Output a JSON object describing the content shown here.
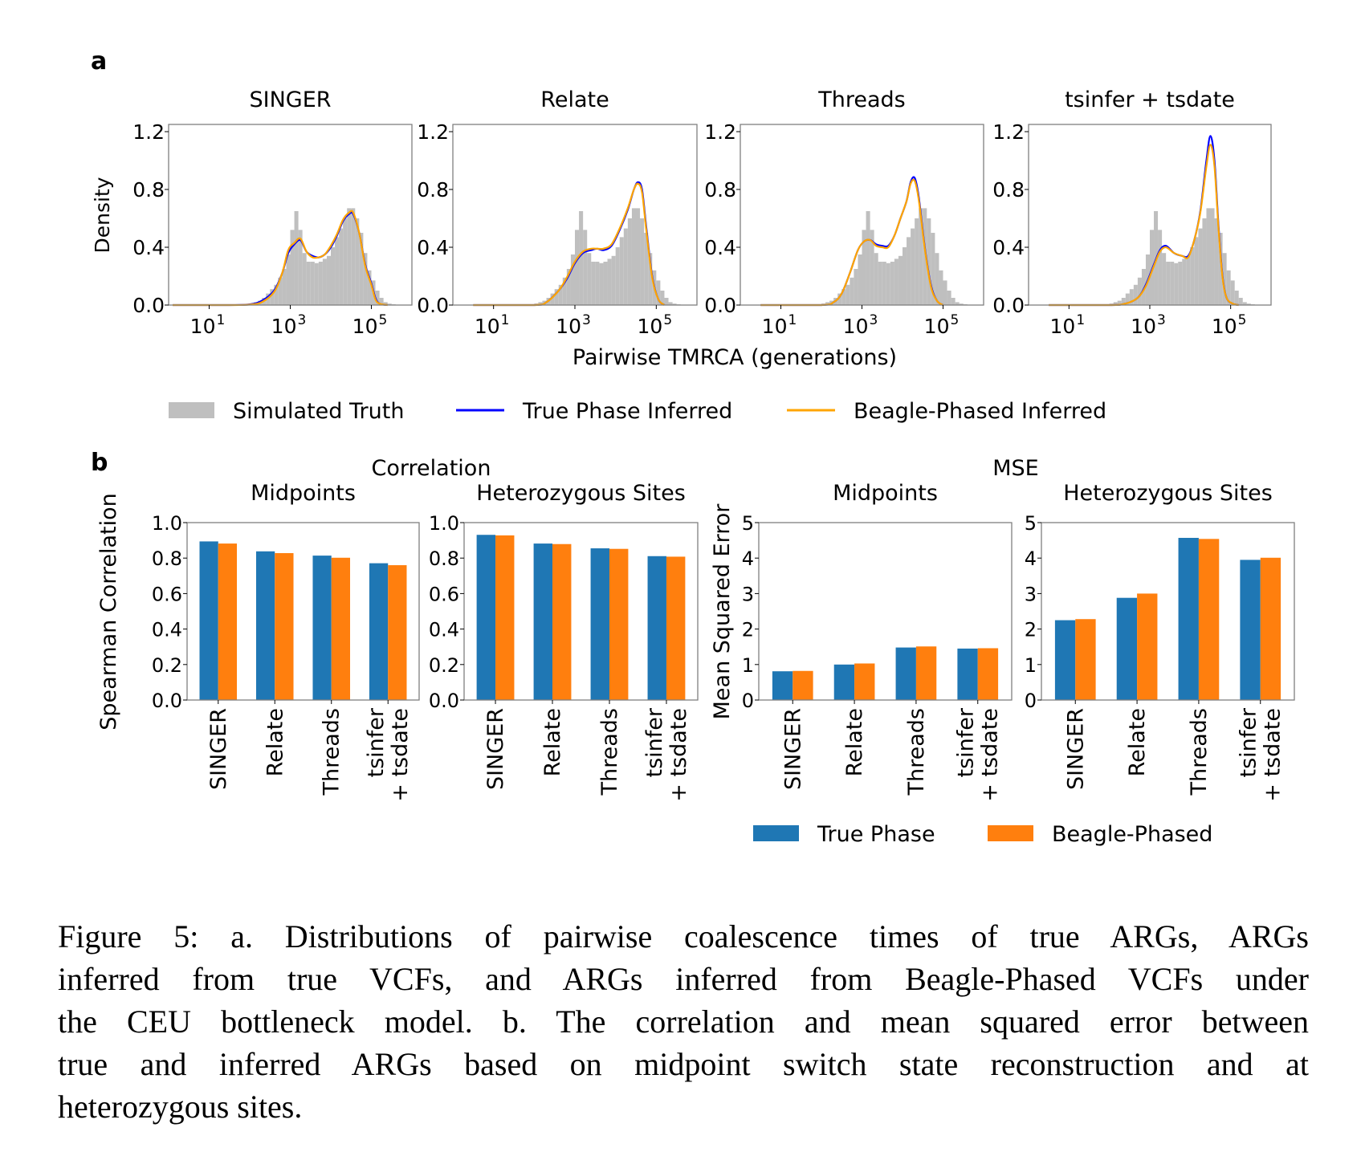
{
  "figure": {
    "panel_a_label": "a",
    "panel_b_label": "b",
    "caption_lines": [
      "Figure 5: a.  Distributions of pairwise coalescence times of true ARGs, ARGs",
      "inferred from true VCFs, and ARGs inferred from Beagle-Phased VCFs under",
      "the CEU bottleneck model. b. The correlation and mean squared error between",
      "true and inferred ARGs based on midpoint switch state reconstruction and at",
      "heterozygous sites."
    ]
  },
  "legend_a": {
    "items": [
      {
        "label": "Simulated Truth",
        "kind": "patch",
        "color": "#bfbfbf"
      },
      {
        "label": "True Phase Inferred",
        "kind": "line",
        "color": "#0000ff"
      },
      {
        "label": "Beagle-Phased Inferred",
        "kind": "line",
        "color": "#ffa500"
      }
    ]
  },
  "legend_b": {
    "items": [
      {
        "label": "True Phase",
        "color": "#1f77b4"
      },
      {
        "label": "Beagle-Phased",
        "color": "#ff7f0e"
      }
    ]
  },
  "group_titles_b": {
    "correlation": "Correlation",
    "mse": "MSE"
  },
  "chart_data": [
    {
      "type": "histogram-with-density",
      "title": "SINGER",
      "xlabel": "Pairwise TMRCA (generations)",
      "ylabel": "Density",
      "xscale": "log10",
      "xlim_log10": [
        0,
        6
      ],
      "ylim": [
        0,
        1.25
      ],
      "yticks": [
        0.0,
        0.4,
        0.8,
        1.2
      ],
      "ytick_labels": [
        "0.0",
        "0.4",
        "0.8",
        "1.2"
      ],
      "xticks_log10": [
        1,
        3,
        5
      ],
      "xtick_labels": [
        "10",
        "10",
        "10"
      ],
      "xtick_exponents": [
        "1",
        "3",
        "5"
      ],
      "truth_hist": {
        "bin_log10_start": 2.0,
        "bin_width_log10": 0.1,
        "density": [
          0.01,
          0.02,
          0.03,
          0.05,
          0.08,
          0.11,
          0.14,
          0.19,
          0.25,
          0.35,
          0.52,
          0.65,
          0.52,
          0.36,
          0.3,
          0.3,
          0.29,
          0.3,
          0.32,
          0.34,
          0.4,
          0.47,
          0.53,
          0.6,
          0.67,
          0.67,
          0.6,
          0.5,
          0.36,
          0.24,
          0.17,
          0.1,
          0.05,
          0.02,
          0.01,
          0.005
        ]
      },
      "series": [
        {
          "name": "True Phase Inferred",
          "color": "#0000ff",
          "x_log10": [
            0.1,
            1.5,
            2.0,
            2.3,
            2.6,
            2.8,
            2.95,
            3.1,
            3.25,
            3.4,
            3.55,
            3.7,
            3.85,
            4.0,
            4.15,
            4.3,
            4.45,
            4.55,
            4.7,
            4.85,
            5.0,
            5.1,
            5.2,
            5.4
          ],
          "y": [
            0.0,
            0.0,
            0.005,
            0.03,
            0.1,
            0.22,
            0.36,
            0.42,
            0.45,
            0.37,
            0.34,
            0.33,
            0.35,
            0.4,
            0.48,
            0.58,
            0.63,
            0.63,
            0.5,
            0.28,
            0.15,
            0.05,
            0.01,
            0.0
          ]
        },
        {
          "name": "Beagle-Phased Inferred",
          "color": "#ffa500",
          "x_log10": [
            0.1,
            1.5,
            2.0,
            2.3,
            2.6,
            2.8,
            2.95,
            3.1,
            3.25,
            3.4,
            3.55,
            3.7,
            3.85,
            4.0,
            4.15,
            4.3,
            4.45,
            4.55,
            4.7,
            4.85,
            5.0,
            5.1,
            5.2,
            5.4
          ],
          "y": [
            0.0,
            0.0,
            0.003,
            0.02,
            0.09,
            0.22,
            0.38,
            0.43,
            0.46,
            0.37,
            0.33,
            0.33,
            0.35,
            0.41,
            0.49,
            0.59,
            0.64,
            0.64,
            0.5,
            0.27,
            0.14,
            0.04,
            0.01,
            0.0
          ]
        }
      ]
    },
    {
      "type": "histogram-with-density",
      "title": "Relate",
      "xscale": "log10",
      "xlim_log10": [
        0,
        6
      ],
      "ylim": [
        0,
        1.25
      ],
      "yticks": [
        0.0,
        0.4,
        0.8,
        1.2
      ],
      "ytick_labels": [
        "0.0",
        "0.4",
        "0.8",
        "1.2"
      ],
      "xticks_log10": [
        1,
        3,
        5
      ],
      "xtick_labels": [
        "10",
        "10",
        "10"
      ],
      "xtick_exponents": [
        "1",
        "3",
        "5"
      ],
      "truth_hist": {
        "bin_log10_start": 2.0,
        "bin_width_log10": 0.1,
        "density": [
          0.01,
          0.02,
          0.03,
          0.05,
          0.08,
          0.11,
          0.14,
          0.19,
          0.25,
          0.35,
          0.52,
          0.65,
          0.52,
          0.36,
          0.3,
          0.3,
          0.29,
          0.3,
          0.32,
          0.34,
          0.4,
          0.47,
          0.53,
          0.6,
          0.67,
          0.67,
          0.6,
          0.5,
          0.36,
          0.24,
          0.17,
          0.1,
          0.05,
          0.02,
          0.01,
          0.005
        ]
      },
      "series": [
        {
          "name": "True Phase Inferred",
          "color": "#0000ff",
          "x_log10": [
            0.5,
            2.0,
            2.3,
            2.6,
            2.8,
            3.0,
            3.2,
            3.4,
            3.55,
            3.7,
            3.9,
            4.1,
            4.3,
            4.45,
            4.55,
            4.65,
            4.75,
            4.9,
            5.05,
            5.2
          ],
          "y": [
            0.0,
            0.0,
            0.02,
            0.1,
            0.18,
            0.29,
            0.36,
            0.38,
            0.39,
            0.38,
            0.41,
            0.52,
            0.66,
            0.8,
            0.85,
            0.8,
            0.55,
            0.2,
            0.04,
            0.0
          ]
        },
        {
          "name": "Beagle-Phased Inferred",
          "color": "#ffa500",
          "x_log10": [
            0.5,
            2.0,
            2.3,
            2.6,
            2.8,
            3.0,
            3.2,
            3.4,
            3.55,
            3.7,
            3.9,
            4.1,
            4.3,
            4.45,
            4.55,
            4.65,
            4.75,
            4.9,
            5.05,
            5.2
          ],
          "y": [
            0.0,
            0.0,
            0.02,
            0.1,
            0.19,
            0.3,
            0.37,
            0.39,
            0.39,
            0.39,
            0.42,
            0.53,
            0.67,
            0.8,
            0.84,
            0.78,
            0.53,
            0.19,
            0.04,
            0.0
          ]
        }
      ]
    },
    {
      "type": "histogram-with-density",
      "title": "Threads",
      "xscale": "log10",
      "xlim_log10": [
        0,
        6
      ],
      "ylim": [
        0,
        1.25
      ],
      "yticks": [
        0.0,
        0.4,
        0.8,
        1.2
      ],
      "ytick_labels": [
        "0.0",
        "0.4",
        "0.8",
        "1.2"
      ],
      "xticks_log10": [
        1,
        3,
        5
      ],
      "xtick_labels": [
        "10",
        "10",
        "10"
      ],
      "xtick_exponents": [
        "1",
        "3",
        "5"
      ],
      "truth_hist": {
        "bin_log10_start": 2.0,
        "bin_width_log10": 0.1,
        "density": [
          0.01,
          0.02,
          0.03,
          0.05,
          0.08,
          0.11,
          0.14,
          0.19,
          0.25,
          0.35,
          0.52,
          0.65,
          0.52,
          0.36,
          0.3,
          0.3,
          0.29,
          0.3,
          0.32,
          0.34,
          0.4,
          0.47,
          0.53,
          0.6,
          0.67,
          0.67,
          0.6,
          0.5,
          0.36,
          0.24,
          0.17,
          0.1,
          0.05,
          0.02,
          0.01,
          0.005
        ]
      },
      "series": [
        {
          "name": "True Phase Inferred",
          "color": "#0000ff",
          "x_log10": [
            0.5,
            2.0,
            2.3,
            2.5,
            2.7,
            2.9,
            3.05,
            3.2,
            3.35,
            3.5,
            3.65,
            3.8,
            3.95,
            4.1,
            4.2,
            4.3,
            4.4,
            4.55,
            4.7,
            4.85,
            5.0
          ],
          "y": [
            0.0,
            0.0,
            0.02,
            0.08,
            0.22,
            0.38,
            0.44,
            0.45,
            0.42,
            0.41,
            0.41,
            0.48,
            0.6,
            0.72,
            0.85,
            0.88,
            0.75,
            0.4,
            0.14,
            0.03,
            0.0
          ]
        },
        {
          "name": "Beagle-Phased Inferred",
          "color": "#ffa500",
          "x_log10": [
            0.5,
            2.0,
            2.3,
            2.5,
            2.7,
            2.9,
            3.05,
            3.2,
            3.35,
            3.5,
            3.65,
            3.8,
            3.95,
            4.1,
            4.2,
            4.3,
            4.4,
            4.55,
            4.7,
            4.85,
            5.0
          ],
          "y": [
            0.0,
            0.0,
            0.02,
            0.08,
            0.22,
            0.38,
            0.44,
            0.45,
            0.41,
            0.4,
            0.4,
            0.48,
            0.6,
            0.72,
            0.84,
            0.86,
            0.73,
            0.39,
            0.13,
            0.03,
            0.0
          ]
        }
      ]
    },
    {
      "type": "histogram-with-density",
      "title": "tsinfer + tsdate",
      "xscale": "log10",
      "xlim_log10": [
        0,
        6
      ],
      "ylim": [
        0,
        1.25
      ],
      "yticks": [
        0.0,
        0.4,
        0.8,
        1.2
      ],
      "ytick_labels": [
        "0.0",
        "0.4",
        "0.8",
        "1.2"
      ],
      "xticks_log10": [
        1,
        3,
        5
      ],
      "xtick_labels": [
        "10",
        "10",
        "10"
      ],
      "xtick_exponents": [
        "1",
        "3",
        "5"
      ],
      "truth_hist": {
        "bin_log10_start": 2.0,
        "bin_width_log10": 0.1,
        "density": [
          0.01,
          0.02,
          0.03,
          0.05,
          0.08,
          0.11,
          0.14,
          0.19,
          0.25,
          0.35,
          0.52,
          0.65,
          0.52,
          0.36,
          0.3,
          0.3,
          0.29,
          0.3,
          0.32,
          0.34,
          0.4,
          0.47,
          0.53,
          0.6,
          0.67,
          0.67,
          0.6,
          0.5,
          0.36,
          0.24,
          0.17,
          0.1,
          0.05,
          0.02,
          0.01,
          0.005
        ]
      },
      "series": [
        {
          "name": "True Phase Inferred",
          "color": "#0000ff",
          "x_log10": [
            0.5,
            2.0,
            2.4,
            2.7,
            2.9,
            3.1,
            3.25,
            3.4,
            3.6,
            3.8,
            3.95,
            4.1,
            4.25,
            4.4,
            4.5,
            4.6,
            4.7,
            4.8,
            4.9,
            5.05,
            5.2
          ],
          "y": [
            0.0,
            0.0,
            0.01,
            0.05,
            0.14,
            0.28,
            0.38,
            0.41,
            0.36,
            0.34,
            0.34,
            0.45,
            0.65,
            1.0,
            1.17,
            1.0,
            0.55,
            0.2,
            0.05,
            0.01,
            0.0
          ]
        },
        {
          "name": "Beagle-Phased Inferred",
          "color": "#ffa500",
          "x_log10": [
            0.5,
            2.0,
            2.4,
            2.7,
            2.9,
            3.1,
            3.25,
            3.4,
            3.6,
            3.8,
            3.95,
            4.1,
            4.25,
            4.4,
            4.5,
            4.6,
            4.7,
            4.8,
            4.9,
            5.05,
            5.2
          ],
          "y": [
            0.0,
            0.0,
            0.01,
            0.05,
            0.13,
            0.27,
            0.37,
            0.4,
            0.36,
            0.34,
            0.33,
            0.45,
            0.64,
            0.96,
            1.11,
            0.96,
            0.53,
            0.19,
            0.05,
            0.01,
            0.0
          ]
        }
      ]
    },
    {
      "type": "bar",
      "group": "Correlation",
      "title": "Midpoints",
      "ylabel": "Spearman Correlation",
      "ylim": [
        0,
        1.0
      ],
      "yticks": [
        0.0,
        0.2,
        0.4,
        0.6,
        0.8,
        1.0
      ],
      "ytick_labels": [
        "0.0",
        "0.2",
        "0.4",
        "0.6",
        "0.8",
        "1.0"
      ],
      "categories": [
        "SINGER",
        "Relate",
        "Threads",
        "tsinfer\n+ tsdate"
      ],
      "series": [
        {
          "name": "True Phase",
          "color": "#1f77b4",
          "values": [
            0.894,
            0.838,
            0.814,
            0.771
          ]
        },
        {
          "name": "Beagle-Phased",
          "color": "#ff7f0e",
          "values": [
            0.882,
            0.828,
            0.802,
            0.76
          ]
        }
      ]
    },
    {
      "type": "bar",
      "group": "Correlation",
      "title": "Heterozygous Sites",
      "ylim": [
        0,
        1.0
      ],
      "yticks": [
        0.0,
        0.2,
        0.4,
        0.6,
        0.8,
        1.0
      ],
      "ytick_labels": [
        "0.0",
        "0.2",
        "0.4",
        "0.6",
        "0.8",
        "1.0"
      ],
      "categories": [
        "SINGER",
        "Relate",
        "Threads",
        "tsinfer\n+ tsdate"
      ],
      "series": [
        {
          "name": "True Phase",
          "color": "#1f77b4",
          "values": [
            0.931,
            0.882,
            0.855,
            0.811
          ]
        },
        {
          "name": "Beagle-Phased",
          "color": "#ff7f0e",
          "values": [
            0.928,
            0.879,
            0.852,
            0.808
          ]
        }
      ]
    },
    {
      "type": "bar",
      "group": "MSE",
      "title": "Midpoints",
      "ylabel": "Mean Squared Error",
      "ylim": [
        0,
        5
      ],
      "yticks": [
        0,
        1,
        2,
        3,
        4,
        5
      ],
      "ytick_labels": [
        "0",
        "1",
        "2",
        "3",
        "4",
        "5"
      ],
      "categories": [
        "SINGER",
        "Relate",
        "Threads",
        "tsinfer\n+ tsdate"
      ],
      "series": [
        {
          "name": "True Phase",
          "color": "#1f77b4",
          "values": [
            0.81,
            1.0,
            1.48,
            1.45
          ]
        },
        {
          "name": "Beagle-Phased",
          "color": "#ff7f0e",
          "values": [
            0.82,
            1.03,
            1.51,
            1.46
          ]
        }
      ]
    },
    {
      "type": "bar",
      "group": "MSE",
      "title": "Heterozygous Sites",
      "ylim": [
        0,
        5
      ],
      "yticks": [
        0,
        1,
        2,
        3,
        4,
        5
      ],
      "ytick_labels": [
        "0",
        "1",
        "2",
        "3",
        "4",
        "5"
      ],
      "categories": [
        "SINGER",
        "Relate",
        "Threads",
        "tsinfer\n+ tsdate"
      ],
      "series": [
        {
          "name": "True Phase",
          "color": "#1f77b4",
          "values": [
            2.25,
            2.88,
            4.57,
            3.95
          ]
        },
        {
          "name": "Beagle-Phased",
          "color": "#ff7f0e",
          "values": [
            2.28,
            3.0,
            4.54,
            4.01
          ]
        }
      ]
    }
  ]
}
